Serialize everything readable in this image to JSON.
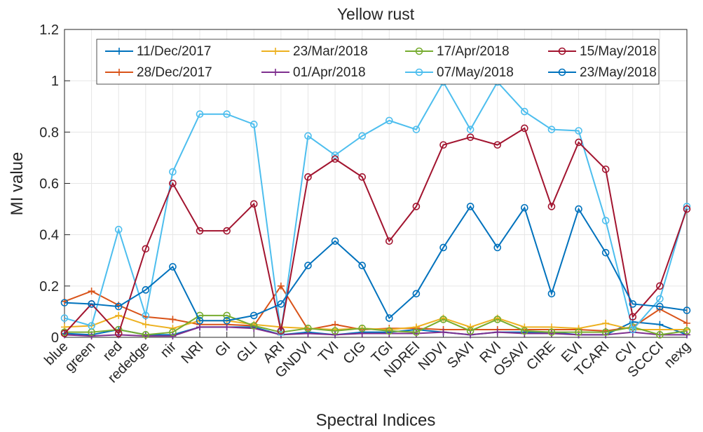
{
  "chart_data": {
    "type": "line",
    "title": "Yellow rust",
    "x_label": "Spectral Indices",
    "y_label": "MI value",
    "categories": [
      "blue",
      "green",
      "red",
      "rededge",
      "nir",
      "NRI",
      "GI",
      "GLI",
      "ARI",
      "GNDVI",
      "TVI",
      "CIG",
      "TGI",
      "NDREI",
      "NDVI",
      "SAVI",
      "RVI",
      "OSAVI",
      "CIRE",
      "EVI",
      "TCARI",
      "CVI",
      "SCCCI",
      "nexg"
    ],
    "ylim": [
      0,
      1.2
    ],
    "yticks": [
      0,
      0.2,
      0.4,
      0.6,
      0.8,
      1,
      1.2
    ],
    "grid": true,
    "legend": "top",
    "series": [
      {
        "name": "11/Dec/2017",
        "color": "#0072BD",
        "marker": "+",
        "values": [
          0.015,
          0.01,
          0.03,
          0.01,
          0.01,
          0.04,
          0.04,
          0.04,
          0.01,
          0.02,
          0.01,
          0.02,
          0.02,
          0.03,
          0.02,
          0.01,
          0.02,
          0.02,
          0.02,
          0.01,
          0.01,
          0.06,
          0.05,
          0.01
        ]
      },
      {
        "name": "28/Dec/2017",
        "color": "#D95319",
        "marker": "+",
        "values": [
          0.14,
          0.18,
          0.125,
          0.08,
          0.07,
          0.05,
          0.05,
          0.045,
          0.2,
          0.03,
          0.05,
          0.03,
          0.035,
          0.035,
          0.03,
          0.03,
          0.03,
          0.03,
          0.03,
          0.03,
          0.025,
          0.04,
          0.11,
          0.055
        ]
      },
      {
        "name": "23/Mar/2018",
        "color": "#EDB120",
        "marker": "+",
        "values": [
          0.04,
          0.045,
          0.085,
          0.05,
          0.035,
          0.065,
          0.065,
          0.05,
          0.04,
          0.035,
          0.03,
          0.035,
          0.03,
          0.04,
          0.075,
          0.04,
          0.075,
          0.04,
          0.04,
          0.035,
          0.055,
          0.03,
          0.03,
          0.03
        ]
      },
      {
        "name": "01/Apr/2018",
        "color": "#7E2F8E",
        "marker": "+",
        "values": [
          0.01,
          0.005,
          0.01,
          0.005,
          0.005,
          0.04,
          0.04,
          0.035,
          0.01,
          0.015,
          0.01,
          0.015,
          0.015,
          0.015,
          0.02,
          0.01,
          0.02,
          0.015,
          0.015,
          0.01,
          0.01,
          0.02,
          0.01,
          0.01
        ]
      },
      {
        "name": "17/Apr/2018",
        "color": "#77AC30",
        "marker": "o",
        "values": [
          0.02,
          0.02,
          0.03,
          0.01,
          0.02,
          0.085,
          0.085,
          0.045,
          0.02,
          0.035,
          0.025,
          0.035,
          0.025,
          0.02,
          0.07,
          0.025,
          0.07,
          0.025,
          0.02,
          0.02,
          0.02,
          0.04,
          0.01,
          0.025
        ]
      },
      {
        "name": "07/May/2018",
        "color": "#4DBEEE",
        "marker": "o",
        "values": [
          0.075,
          0.045,
          0.42,
          0.085,
          0.645,
          0.87,
          0.87,
          0.83,
          0.02,
          0.785,
          0.71,
          0.785,
          0.845,
          0.81,
          0.995,
          0.81,
          0.995,
          0.88,
          0.81,
          0.805,
          0.455,
          0.03,
          0.15,
          0.51
        ]
      },
      {
        "name": "15/May/2018",
        "color": "#A2142F",
        "marker": "o",
        "values": [
          0.015,
          0.13,
          0.015,
          0.345,
          0.6,
          0.415,
          0.415,
          0.52,
          0.025,
          0.625,
          0.695,
          0.625,
          0.375,
          0.51,
          0.75,
          0.78,
          0.75,
          0.815,
          0.51,
          0.76,
          0.655,
          0.08,
          0.2,
          0.5
        ]
      },
      {
        "name": "23/May/2018",
        "color": "#0072BD",
        "marker": "o",
        "values": [
          0.135,
          0.13,
          0.12,
          0.185,
          0.275,
          0.065,
          0.065,
          0.085,
          0.13,
          0.28,
          0.375,
          0.28,
          0.075,
          0.17,
          0.35,
          0.51,
          0.35,
          0.505,
          0.17,
          0.5,
          0.33,
          0.13,
          0.12,
          0.105
        ]
      }
    ]
  }
}
